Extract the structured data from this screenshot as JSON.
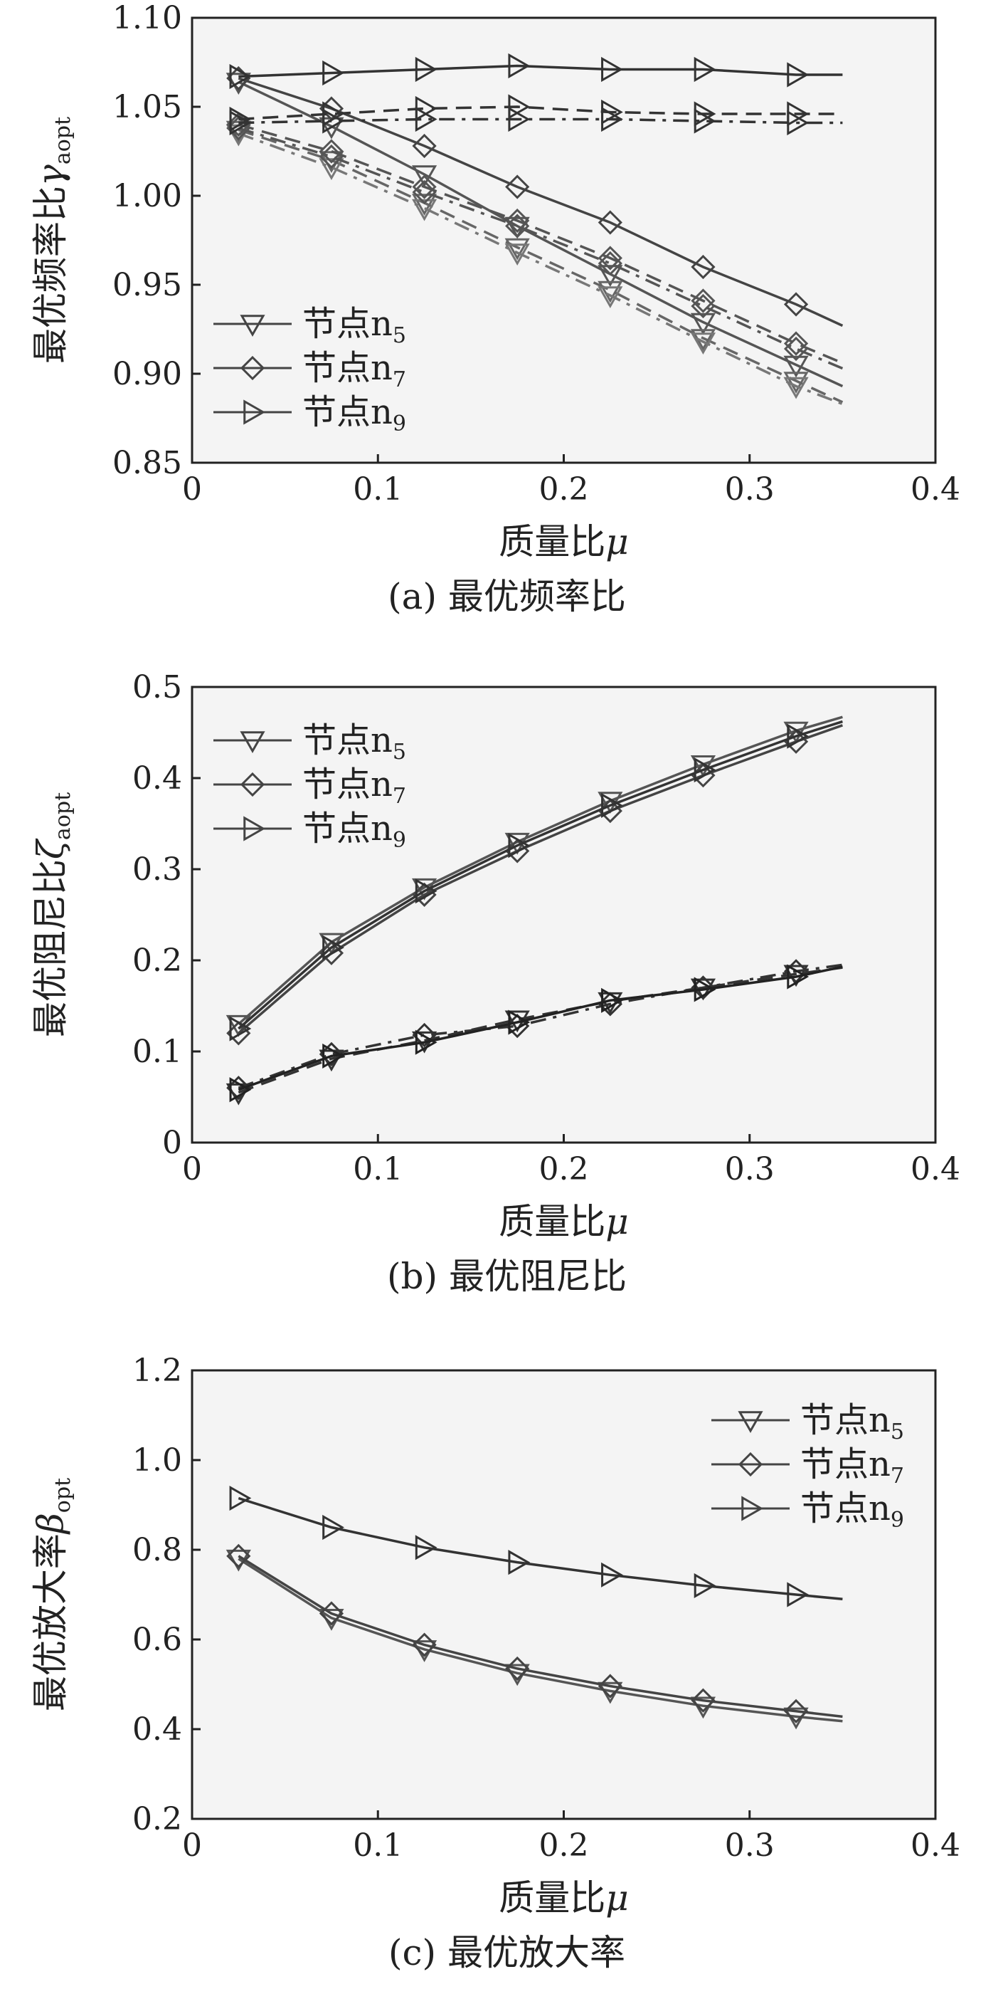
{
  "chart_data": [
    {
      "type": "line",
      "caption": "(a) 最优频率比",
      "xlabel": "质量比",
      "xlabel_symbol": "μ",
      "ylabel": "最优频率比",
      "ylabel_symbol": "γ",
      "ylabel_sub": "aopt",
      "xlim": [
        0,
        0.4
      ],
      "ylim": [
        0.85,
        1.1
      ],
      "xticks": [
        "0",
        "0.1",
        "0.2",
        "0.3",
        "0.4"
      ],
      "yticks": [
        "0.85",
        "0.90",
        "0.95",
        "1.00",
        "1.05",
        "1.10"
      ],
      "legend_position": "lower-left",
      "legend": [
        {
          "text": "节点",
          "sub": "5",
          "marker": "tri-down"
        },
        {
          "text": "节点",
          "sub": "7",
          "marker": "diamond"
        },
        {
          "text": "节点",
          "sub": "9",
          "marker": "tri-right"
        }
      ],
      "series": [
        {
          "marker": "tri-down",
          "dash": "solid",
          "color": "#555555",
          "x": [
            0.025,
            0.075,
            0.125,
            0.175,
            0.225,
            0.275,
            0.325,
            0.35
          ],
          "y": [
            1.064,
            1.039,
            1.012,
            0.983,
            0.956,
            0.929,
            0.905,
            0.893
          ]
        },
        {
          "marker": "tri-down",
          "dash": "dash",
          "color": "#666666",
          "x": [
            0.025,
            0.075,
            0.125,
            0.175,
            0.225,
            0.275,
            0.325,
            0.35
          ],
          "y": [
            1.037,
            1.02,
            0.996,
            0.971,
            0.947,
            0.92,
            0.896,
            0.884
          ]
        },
        {
          "marker": "tri-down",
          "dash": "dashdot",
          "color": "#777777",
          "x": [
            0.025,
            0.075,
            0.125,
            0.175,
            0.225,
            0.275,
            0.325,
            0.35
          ],
          "y": [
            1.035,
            1.016,
            0.993,
            0.968,
            0.944,
            0.918,
            0.893,
            0.883
          ]
        },
        {
          "marker": "diamond",
          "dash": "solid",
          "color": "#444444",
          "x": [
            0.025,
            0.075,
            0.125,
            0.175,
            0.225,
            0.275,
            0.325,
            0.35
          ],
          "y": [
            1.066,
            1.049,
            1.028,
            1.005,
            0.985,
            0.96,
            0.939,
            0.927
          ]
        },
        {
          "marker": "diamond",
          "dash": "dash",
          "color": "#555555",
          "x": [
            0.025,
            0.075,
            0.125,
            0.175,
            0.225,
            0.275,
            0.325,
            0.35
          ],
          "y": [
            1.04,
            1.025,
            1.005,
            0.986,
            0.965,
            0.941,
            0.917,
            0.906
          ]
        },
        {
          "marker": "diamond",
          "dash": "dashdot",
          "color": "#555555",
          "x": [
            0.025,
            0.075,
            0.125,
            0.175,
            0.225,
            0.275,
            0.325,
            0.35
          ],
          "y": [
            1.038,
            1.022,
            1.002,
            0.983,
            0.962,
            0.938,
            0.914,
            0.903
          ]
        },
        {
          "marker": "tri-right",
          "dash": "solid",
          "color": "#333333",
          "x": [
            0.025,
            0.075,
            0.125,
            0.175,
            0.225,
            0.275,
            0.325,
            0.35
          ],
          "y": [
            1.067,
            1.069,
            1.071,
            1.073,
            1.071,
            1.071,
            1.068,
            1.068
          ]
        },
        {
          "marker": "tri-right",
          "dash": "dash",
          "color": "#333333",
          "x": [
            0.025,
            0.075,
            0.125,
            0.175,
            0.225,
            0.275,
            0.325,
            0.35
          ],
          "y": [
            1.043,
            1.046,
            1.049,
            1.05,
            1.047,
            1.046,
            1.046,
            1.046
          ]
        },
        {
          "marker": "tri-right",
          "dash": "dashdot",
          "color": "#333333",
          "x": [
            0.025,
            0.075,
            0.125,
            0.175,
            0.225,
            0.275,
            0.325,
            0.35
          ],
          "y": [
            1.041,
            1.042,
            1.043,
            1.043,
            1.043,
            1.042,
            1.041,
            1.041
          ]
        }
      ]
    },
    {
      "type": "line",
      "caption": "(b) 最优阻尼比",
      "xlabel": "质量比",
      "xlabel_symbol": "μ",
      "ylabel": "最优阻尼比",
      "ylabel_symbol": "ζ",
      "ylabel_sub": "aopt",
      "xlim": [
        0,
        0.4
      ],
      "ylim": [
        0,
        0.5
      ],
      "xticks": [
        "0",
        "0.1",
        "0.2",
        "0.3",
        "0.4"
      ],
      "yticks": [
        "0",
        "0.1",
        "0.2",
        "0.3",
        "0.4",
        "0.5"
      ],
      "legend_position": "upper-left",
      "legend": [
        {
          "text": "节点",
          "sub": "5",
          "marker": "tri-down"
        },
        {
          "text": "节点",
          "sub": "7",
          "marker": "diamond"
        },
        {
          "text": "节点",
          "sub": "9",
          "marker": "tri-right"
        }
      ],
      "series": [
        {
          "marker": "tri-down",
          "dash": "solid",
          "color": "#555555",
          "x": [
            0.025,
            0.075,
            0.125,
            0.175,
            0.225,
            0.275,
            0.325,
            0.35
          ],
          "y": [
            0.13,
            0.22,
            0.28,
            0.33,
            0.375,
            0.415,
            0.452,
            0.467
          ]
        },
        {
          "marker": "diamond",
          "dash": "solid",
          "color": "#444444",
          "x": [
            0.025,
            0.075,
            0.125,
            0.175,
            0.225,
            0.275,
            0.325,
            0.35
          ],
          "y": [
            0.12,
            0.208,
            0.272,
            0.32,
            0.364,
            0.403,
            0.44,
            0.458
          ]
        },
        {
          "marker": "tri-right",
          "dash": "solid",
          "color": "#333333",
          "x": [
            0.025,
            0.075,
            0.125,
            0.175,
            0.225,
            0.275,
            0.325,
            0.35
          ],
          "y": [
            0.125,
            0.214,
            0.276,
            0.326,
            0.37,
            0.409,
            0.446,
            0.462
          ]
        },
        {
          "marker": "tri-down",
          "dash": "dash",
          "color": "#333333",
          "x": [
            0.025,
            0.075,
            0.125,
            0.175,
            0.225,
            0.275,
            0.325,
            0.35
          ],
          "y": [
            0.055,
            0.092,
            0.112,
            0.135,
            0.155,
            0.17,
            0.185,
            0.192
          ]
        },
        {
          "marker": "diamond",
          "dash": "dashdot",
          "color": "#333333",
          "x": [
            0.025,
            0.075,
            0.125,
            0.175,
            0.225,
            0.275,
            0.325,
            0.35
          ],
          "y": [
            0.06,
            0.097,
            0.118,
            0.128,
            0.152,
            0.17,
            0.188,
            0.195
          ]
        },
        {
          "marker": "tri-right",
          "dash": "solid",
          "color": "#222222",
          "x": [
            0.025,
            0.075,
            0.125,
            0.175,
            0.225,
            0.275,
            0.325,
            0.35
          ],
          "y": [
            0.058,
            0.095,
            0.11,
            0.132,
            0.156,
            0.168,
            0.182,
            0.193
          ]
        }
      ]
    },
    {
      "type": "line",
      "caption": "(c) 最优放大率",
      "xlabel": "质量比",
      "xlabel_symbol": "μ",
      "ylabel": "最优放大率",
      "ylabel_symbol": "β",
      "ylabel_sub": "opt",
      "xlim": [
        0,
        0.4
      ],
      "ylim": [
        0.2,
        1.2
      ],
      "xticks": [
        "0",
        "0.1",
        "0.2",
        "0.3",
        "0.4"
      ],
      "yticks": [
        "0.2",
        "0.4",
        "0.6",
        "0.8",
        "1.0",
        "1.2"
      ],
      "legend_position": "upper-right",
      "legend": [
        {
          "text": "节点",
          "sub": "5",
          "marker": "tri-down"
        },
        {
          "text": "节点",
          "sub": "7",
          "marker": "diamond"
        },
        {
          "text": "节点",
          "sub": "9",
          "marker": "tri-right"
        }
      ],
      "series": [
        {
          "marker": "tri-down",
          "dash": "solid",
          "color": "#555555",
          "x": [
            0.025,
            0.075,
            0.125,
            0.175,
            0.225,
            0.275,
            0.325,
            0.35
          ],
          "y": [
            0.78,
            0.648,
            0.578,
            0.525,
            0.485,
            0.452,
            0.428,
            0.418
          ]
        },
        {
          "marker": "diamond",
          "dash": "solid",
          "color": "#444444",
          "x": [
            0.025,
            0.075,
            0.125,
            0.175,
            0.225,
            0.275,
            0.325,
            0.35
          ],
          "y": [
            0.786,
            0.658,
            0.588,
            0.535,
            0.496,
            0.464,
            0.44,
            0.428
          ]
        },
        {
          "marker": "tri-right",
          "dash": "solid",
          "color": "#333333",
          "x": [
            0.025,
            0.075,
            0.125,
            0.175,
            0.225,
            0.275,
            0.325,
            0.35
          ],
          "y": [
            0.915,
            0.85,
            0.805,
            0.772,
            0.744,
            0.72,
            0.7,
            0.69
          ]
        }
      ]
    }
  ]
}
